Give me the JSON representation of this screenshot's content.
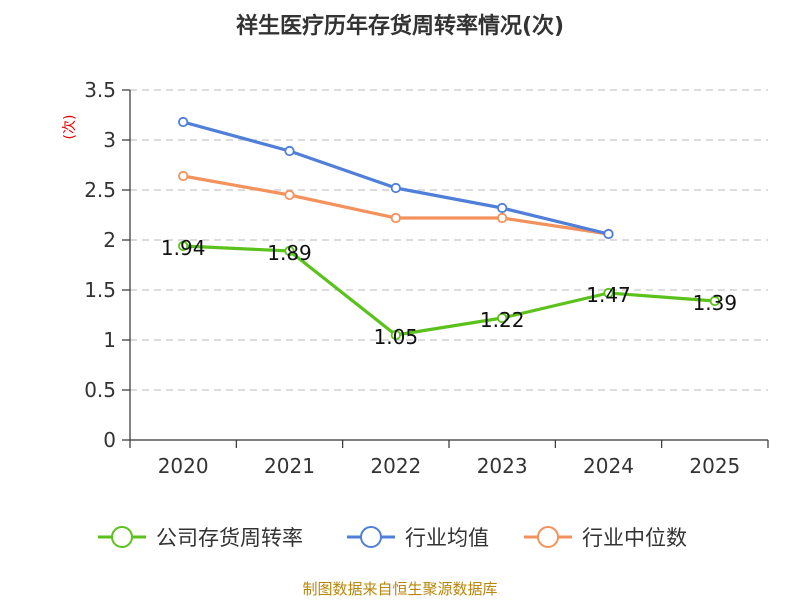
{
  "chart_data": {
    "type": "line",
    "title": "祥生医疗历年存货周转率情况(次)",
    "ylabel": "(次)",
    "xlabel": "",
    "categories": [
      "2020",
      "2021",
      "2022",
      "2023",
      "2024",
      "2025"
    ],
    "ylim": [
      0,
      3.5
    ],
    "yticks": [
      "0",
      "0.5",
      "1",
      "1.5",
      "2",
      "2.5",
      "3",
      "3.5"
    ],
    "ytick_values": [
      0,
      0.5,
      1,
      1.5,
      2,
      2.5,
      3,
      3.5
    ],
    "grid": true,
    "legend_position": "bottom",
    "series": [
      {
        "name": "公司存货周转率",
        "color": "#5bc21c",
        "values": [
          1.94,
          1.89,
          1.05,
          1.22,
          1.47,
          1.39
        ],
        "labels": [
          "1.94",
          "1.89",
          "1.05",
          "1.22",
          "1.47",
          "1.39"
        ],
        "show_labels": true
      },
      {
        "name": "行业均值",
        "color": "#4f7fd8",
        "values": [
          3.18,
          2.89,
          2.52,
          2.32,
          2.06,
          null
        ],
        "show_labels": false
      },
      {
        "name": "行业中位数",
        "color": "#f4925d",
        "values": [
          2.64,
          2.45,
          2.22,
          2.22,
          2.06,
          null
        ],
        "show_labels": false
      }
    ],
    "source": "制图数据来自恒生聚源数据库"
  }
}
